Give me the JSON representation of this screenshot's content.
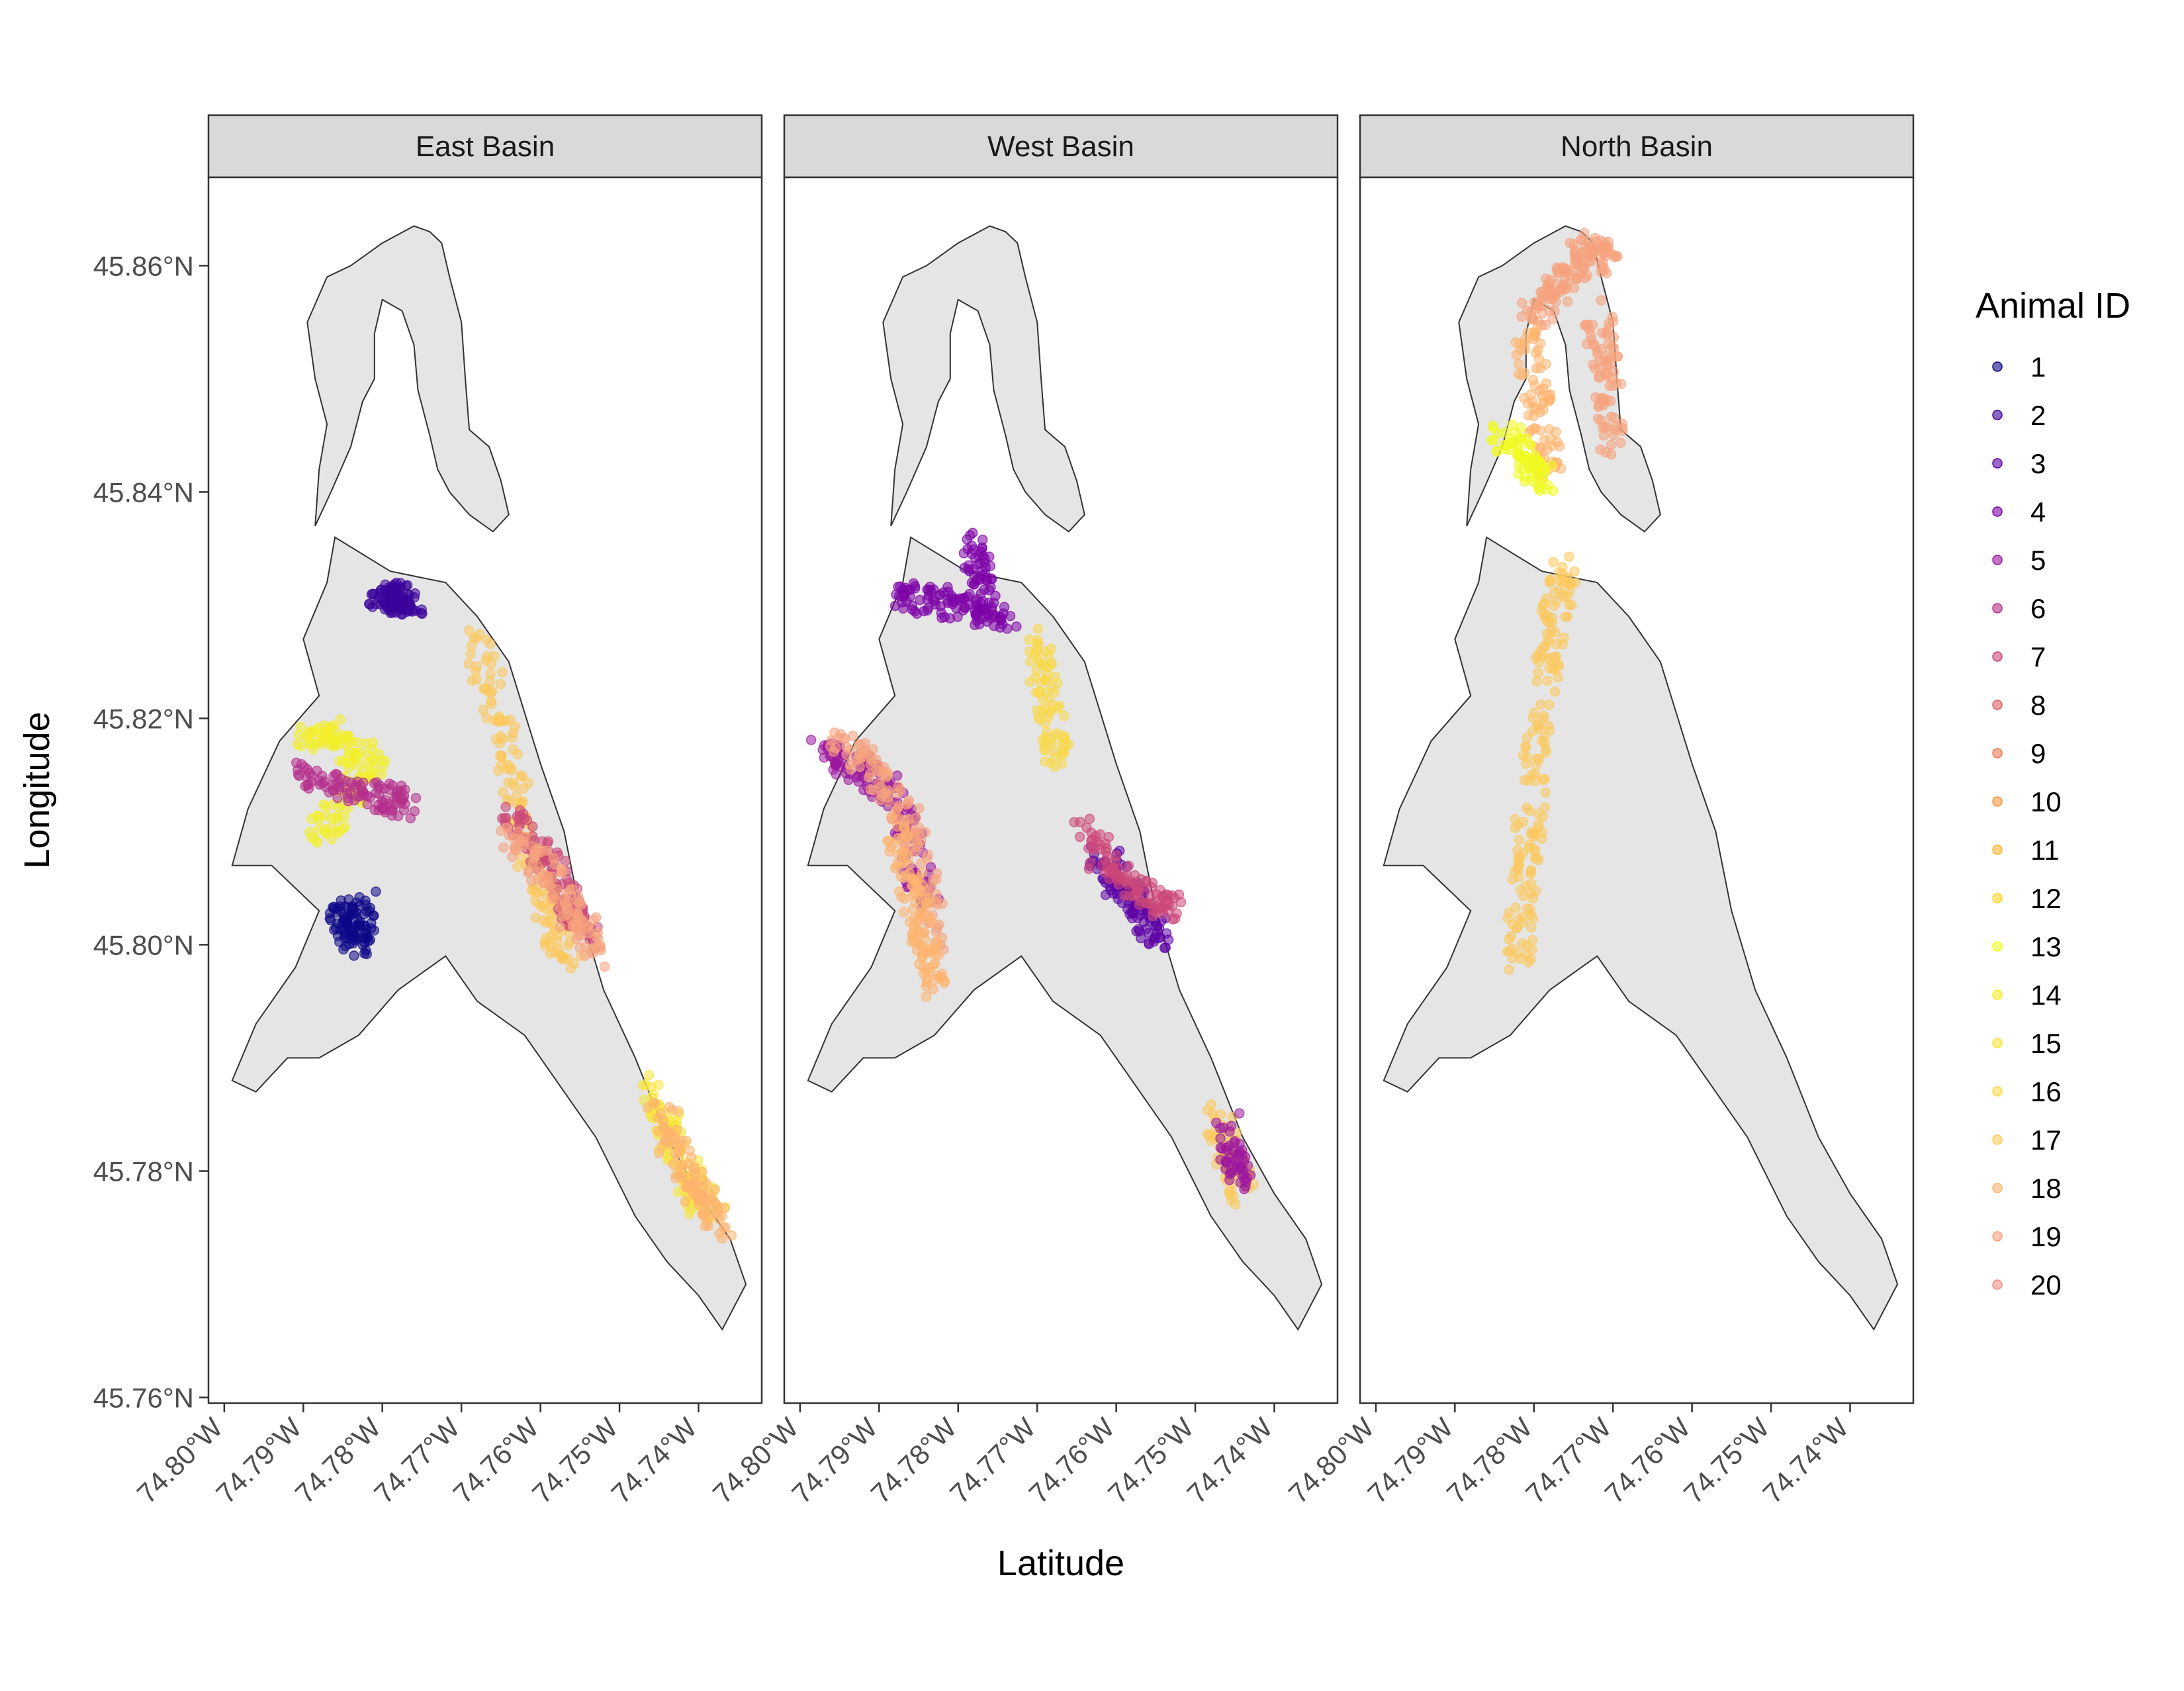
{
  "chart_data": {
    "type": "scatter",
    "title": "",
    "xlabel": "Latitude",
    "ylabel": "Longitude",
    "xlim": [
      -74.802,
      -74.732
    ],
    "ylim": [
      45.7595,
      45.8678
    ],
    "x_ticks": [
      {
        "value": -74.8,
        "label": "74.80°W"
      },
      {
        "value": -74.79,
        "label": "74.79°W"
      },
      {
        "value": -74.78,
        "label": "74.78°W"
      },
      {
        "value": -74.77,
        "label": "74.77°W"
      },
      {
        "value": -74.76,
        "label": "74.76°W"
      },
      {
        "value": -74.75,
        "label": "74.75°W"
      },
      {
        "value": -74.74,
        "label": "74.74°W"
      }
    ],
    "y_ticks": [
      {
        "value": 45.76,
        "label": "45.76°N"
      },
      {
        "value": 45.78,
        "label": "45.78°N"
      },
      {
        "value": 45.8,
        "label": "45.80°N"
      },
      {
        "value": 45.82,
        "label": "45.82°N"
      },
      {
        "value": 45.84,
        "label": "45.84°N"
      },
      {
        "value": 45.86,
        "label": "45.86°N"
      }
    ],
    "grid": false,
    "legend": {
      "title": "Animal ID",
      "placement": "right",
      "entries": [
        "1",
        "2",
        "3",
        "4",
        "5",
        "6",
        "7",
        "8",
        "9",
        "10",
        "11",
        "12",
        "13",
        "14",
        "15",
        "16",
        "17",
        "18",
        "19",
        "20"
      ],
      "colors": [
        "#0d0887",
        "#3a049a",
        "#5c01a6",
        "#7e03a8",
        "#9c179e",
        "#b52f8c",
        "#cc4778",
        "#de5f65",
        "#ed7953",
        "#f89540",
        "#fdb42f",
        "#fbd524",
        "#f0f921",
        "#f3ef2b",
        "#f6e63a",
        "#f9d94a",
        "#fcc95c",
        "#fdb46f",
        "#f6a27e",
        "#ef8f8a"
      ]
    },
    "lake_outline": [
      [
        -74.774,
        45.863
      ],
      [
        -74.7725,
        45.862
      ],
      [
        -74.7715,
        45.859
      ],
      [
        -74.77,
        45.855
      ],
      [
        -74.7695,
        45.85
      ],
      [
        -74.769,
        45.8455
      ],
      [
        -74.7665,
        45.844
      ],
      [
        -74.765,
        45.841
      ],
      [
        -74.764,
        45.838
      ],
      [
        -74.766,
        45.8365
      ],
      [
        -74.769,
        45.838
      ],
      [
        -74.7715,
        45.84
      ],
      [
        -74.773,
        45.842
      ],
      [
        -74.774,
        45.845
      ],
      [
        -74.7755,
        45.849
      ],
      [
        -74.776,
        45.853
      ],
      [
        -74.7775,
        45.856
      ],
      [
        -74.78,
        45.857
      ],
      [
        -74.781,
        45.854
      ],
      [
        -74.781,
        45.85
      ],
      [
        -74.7825,
        45.848
      ],
      [
        -74.784,
        45.844
      ],
      [
        -74.7865,
        45.84
      ],
      [
        -74.7885,
        45.837
      ],
      [
        -74.788,
        45.842
      ],
      [
        -74.787,
        45.846
      ],
      [
        -74.7885,
        45.85
      ],
      [
        -74.7895,
        45.855
      ],
      [
        -74.787,
        45.859
      ],
      [
        -74.784,
        45.86
      ],
      [
        -74.78,
        45.862
      ],
      [
        -74.776,
        45.8635
      ]
    ],
    "lake_extent": [
      [
        -74.8005,
        45.7655
      ],
      [
        -74.7325,
        45.8635
      ]
    ],
    "panels": [
      {
        "name": "East Basin",
        "tracks": [
          {
            "id": 2,
            "x": [
              -74.78,
              -74.7795,
              -74.7785,
              -74.7775,
              -74.776
            ],
            "y": [
              45.83,
              45.8305,
              45.8308,
              45.8305,
              45.83
            ]
          },
          {
            "id": 1,
            "x": [
              -74.7855,
              -74.7845,
              -74.7835,
              -74.783,
              -74.7825
            ],
            "y": [
              45.803,
              45.802,
              45.801,
              45.8,
              45.804
            ]
          },
          {
            "id": 14,
            "x": [
              -74.79,
              -74.787,
              -74.784,
              -74.781,
              -74.785,
              -74.788
            ],
            "y": [
              45.818,
              45.819,
              45.817,
              45.816,
              45.812,
              45.81
            ]
          },
          {
            "id": 6,
            "x": [
              -74.79,
              -74.786,
              -74.782,
              -74.779,
              -74.777
            ],
            "y": [
              45.815,
              45.814,
              45.8135,
              45.813,
              45.812
            ]
          },
          {
            "id": 17,
            "x": [
              -74.768,
              -74.766,
              -74.764,
              -74.762,
              -74.76,
              -74.758,
              -74.756
            ],
            "y": [
              45.827,
              45.822,
              45.816,
              45.81,
              45.805,
              45.801,
              45.799
            ]
          },
          {
            "id": 7,
            "x": [
              -74.764,
              -74.761,
              -74.758,
              -74.756,
              -74.754
            ],
            "y": [
              45.812,
              45.809,
              45.806,
              45.803,
              45.801
            ]
          },
          {
            "id": 19,
            "x": [
              -74.764,
              -74.76,
              -74.757,
              -74.755,
              -74.753
            ],
            "y": [
              45.81,
              45.807,
              45.804,
              45.802,
              45.799
            ]
          },
          {
            "id": 15,
            "x": [
              -74.746,
              -74.744,
              -74.742,
              -74.74,
              -74.738
            ],
            "y": [
              45.788,
              45.784,
              45.781,
              45.778,
              45.776
            ]
          },
          {
            "id": 18,
            "x": [
              -74.745,
              -74.743,
              -74.741,
              -74.739,
              -74.737
            ],
            "y": [
              45.786,
              45.782,
              45.779,
              45.777,
              45.775
            ]
          }
        ]
      },
      {
        "name": "West Basin",
        "tracks": [
          {
            "id": 4,
            "x": [
              -74.788,
              -74.784,
              -74.78,
              -74.777,
              -74.774
            ],
            "y": [
              45.831,
              45.8305,
              45.83,
              45.8295,
              45.829
            ]
          },
          {
            "id": 4,
            "x": [
              -74.778,
              -74.7775,
              -74.777
            ],
            "y": [
              45.836,
              45.833,
              45.83
            ]
          },
          {
            "id": 5,
            "x": [
              -74.797,
              -74.794,
              -74.791,
              -74.788,
              -74.786,
              -74.784
            ],
            "y": [
              45.817,
              45.816,
              45.815,
              45.813,
              45.809,
              45.804
            ]
          },
          {
            "id": 19,
            "x": [
              -74.795,
              -74.792,
              -74.789,
              -74.786,
              -74.784,
              -74.783
            ],
            "y": [
              45.818,
              45.8165,
              45.814,
              45.81,
              45.805,
              45.8
            ]
          },
          {
            "id": 18,
            "x": [
              -74.788,
              -74.786,
              -74.785,
              -74.784,
              -74.783
            ],
            "y": [
              45.811,
              45.806,
              45.802,
              45.799,
              45.796
            ]
          },
          {
            "id": 16,
            "x": [
              -74.77,
              -74.769,
              -74.768,
              -74.767
            ],
            "y": [
              45.827,
              45.823,
              45.819,
              45.815
            ]
          },
          {
            "id": 3,
            "x": [
              -74.762,
              -74.76,
              -74.758,
              -74.756,
              -74.754
            ],
            "y": [
              45.808,
              45.806,
              45.804,
              45.802,
              45.8
            ]
          },
          {
            "id": 7,
            "x": [
              -74.764,
              -74.761,
              -74.758,
              -74.755,
              -74.753
            ],
            "y": [
              45.81,
              45.807,
              45.805,
              45.804,
              45.803
            ]
          },
          {
            "id": 17,
            "x": [
              -74.747,
              -74.746,
              -74.745,
              -74.744
            ],
            "y": [
              45.785,
              45.782,
              45.78,
              45.778
            ]
          },
          {
            "id": 5,
            "x": [
              -74.746,
              -74.745,
              -74.744
            ],
            "y": [
              45.784,
              45.781,
              45.779
            ]
          }
        ]
      },
      {
        "name": "North Basin",
        "tracks": [
          {
            "id": 19,
            "x": [
              -74.78,
              -74.778,
              -74.776,
              -74.774,
              -74.772,
              -74.771
            ],
            "y": [
              45.8555,
              45.857,
              45.859,
              45.861,
              45.862,
              45.86
            ]
          },
          {
            "id": 18,
            "x": [
              -74.781,
              -74.78,
              -74.779,
              -74.778
            ],
            "y": [
              45.854,
              45.85,
              45.846,
              45.842
            ]
          },
          {
            "id": 19,
            "x": [
              -74.772,
              -74.771,
              -74.7705,
              -74.77
            ],
            "y": [
              45.856,
              45.852,
              45.848,
              45.844
            ]
          },
          {
            "id": 13,
            "x": [
              -74.784,
              -74.782,
              -74.78,
              -74.779
            ],
            "y": [
              45.845,
              45.844,
              45.842,
              45.841
            ]
          },
          {
            "id": 17,
            "x": [
              -74.776,
              -74.777,
              -74.778,
              -74.779,
              -74.78,
              -74.781,
              -74.7815,
              -74.782
            ],
            "y": [
              45.834,
              45.83,
              45.826,
              45.82,
              45.814,
              45.808,
              45.803,
              45.798
            ]
          }
        ]
      }
    ]
  }
}
